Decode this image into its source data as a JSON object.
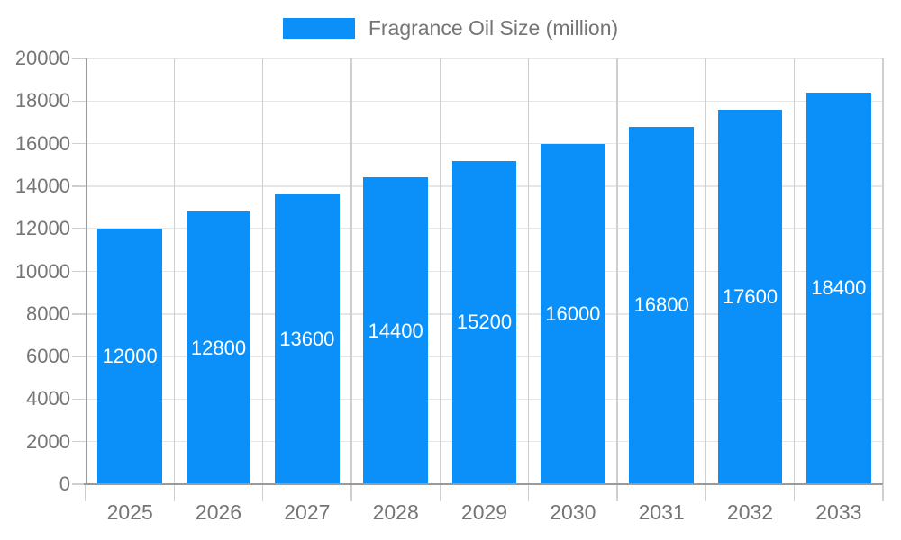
{
  "legend": {
    "label": "Fragrance Oil Size (million)"
  },
  "chart_data": {
    "type": "bar",
    "title": "Fragrance Oil Size (million)",
    "categories": [
      "2025",
      "2026",
      "2027",
      "2028",
      "2029",
      "2030",
      "2031",
      "2032",
      "2033"
    ],
    "values": [
      12000,
      12800,
      13600,
      14400,
      15200,
      16000,
      16800,
      17600,
      18400
    ],
    "xlabel": "",
    "ylabel": "",
    "ylim": [
      0,
      20000
    ],
    "yticks": [
      0,
      2000,
      4000,
      6000,
      8000,
      10000,
      12000,
      14000,
      16000,
      18000,
      20000
    ],
    "bar_labels_visible": true,
    "bar_label_position": "center",
    "grid": true,
    "legend_position": "top-center",
    "colors": {
      "bar": "#0a90f8",
      "bar_label": "#ffffff",
      "axis_line": "#9a9a9a",
      "grid_horizontal": "#e6e6e6",
      "grid_vertical": "#cfcfcf",
      "tick": "#cfcfcf",
      "text": "#757575",
      "background": "#ffffff"
    }
  }
}
